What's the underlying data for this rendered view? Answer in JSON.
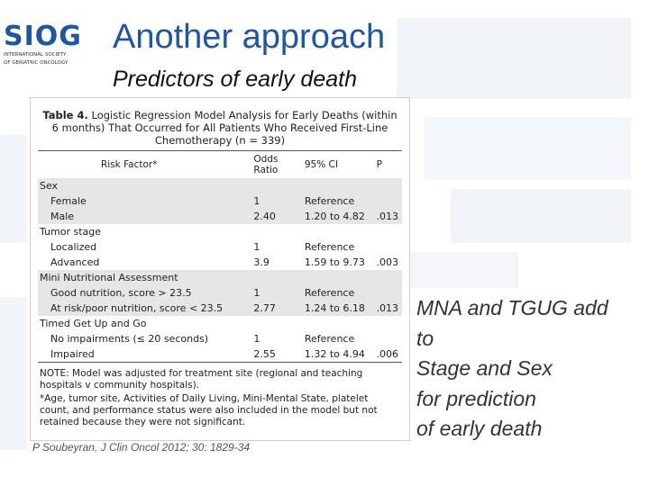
{
  "logo": {
    "word": "SIOG",
    "lines": [
      "INTERNATIONAL SOCIETY",
      "OF GERIATRIC ONCOLOGY"
    ]
  },
  "slide": {
    "title": "Another approach",
    "subtitle": "Predictors of early death"
  },
  "table": {
    "caption_label": "Table 4.",
    "caption_text": "Logistic Regression Model Analysis for Early Deaths (within 6 months) That Occurred for All Patients Who Received First-Line Chemotherapy (n = 339)",
    "headers": [
      "Risk Factor*",
      "Odds Ratio",
      "95% CI",
      "P"
    ],
    "rows": [
      {
        "cells": [
          "Sex",
          "",
          "",
          ""
        ],
        "group": true,
        "shade": true
      },
      {
        "cells": [
          "Female",
          "1",
          "Reference",
          ""
        ],
        "group": false,
        "shade": true
      },
      {
        "cells": [
          "Male",
          "2.40",
          "1.20 to 4.82",
          ".013"
        ],
        "group": false,
        "shade": true
      },
      {
        "cells": [
          "Tumor stage",
          "",
          "",
          ""
        ],
        "group": true,
        "shade": false
      },
      {
        "cells": [
          "Localized",
          "1",
          "Reference",
          ""
        ],
        "group": false,
        "shade": false
      },
      {
        "cells": [
          "Advanced",
          "3.9",
          "1.59 to 9.73",
          ".003"
        ],
        "group": false,
        "shade": false
      },
      {
        "cells": [
          "Mini Nutritional Assessment",
          "",
          "",
          ""
        ],
        "group": true,
        "shade": true
      },
      {
        "cells": [
          "Good nutrition, score > 23.5",
          "1",
          "Reference",
          ""
        ],
        "group": false,
        "shade": true
      },
      {
        "cells": [
          "At risk/poor nutrition, score < 23.5",
          "2.77",
          "1.24 to 6.18",
          ".013"
        ],
        "group": false,
        "shade": true
      },
      {
        "cells": [
          "Timed Get Up and Go",
          "",
          "",
          ""
        ],
        "group": true,
        "shade": false
      },
      {
        "cells": [
          "No impairments (≤ 20 seconds)",
          "1",
          "Reference",
          ""
        ],
        "group": false,
        "shade": false
      },
      {
        "cells": [
          "Impaired",
          "2.55",
          "1.32 to 4.94",
          ".006"
        ],
        "group": false,
        "shade": false
      }
    ],
    "note": "NOTE: Model was adjusted for treatment site (regional and teaching hospitals v community hospitals).",
    "footnote": "*Age, tumor site, Activities of Daily Living, Mini-Mental State, platelet count, and performance status were also included in the model but not retained because they were not significant."
  },
  "citation": "P Soubeyran, J Clin Oncol 2012; 30: 1829-34",
  "side_text": [
    "MNA and TGUG add",
    "to",
    "Stage and Sex",
    "for prediction",
    "of early death"
  ],
  "colors": {
    "title": "#1f56a3",
    "background_shapes": "#eef2f8"
  }
}
